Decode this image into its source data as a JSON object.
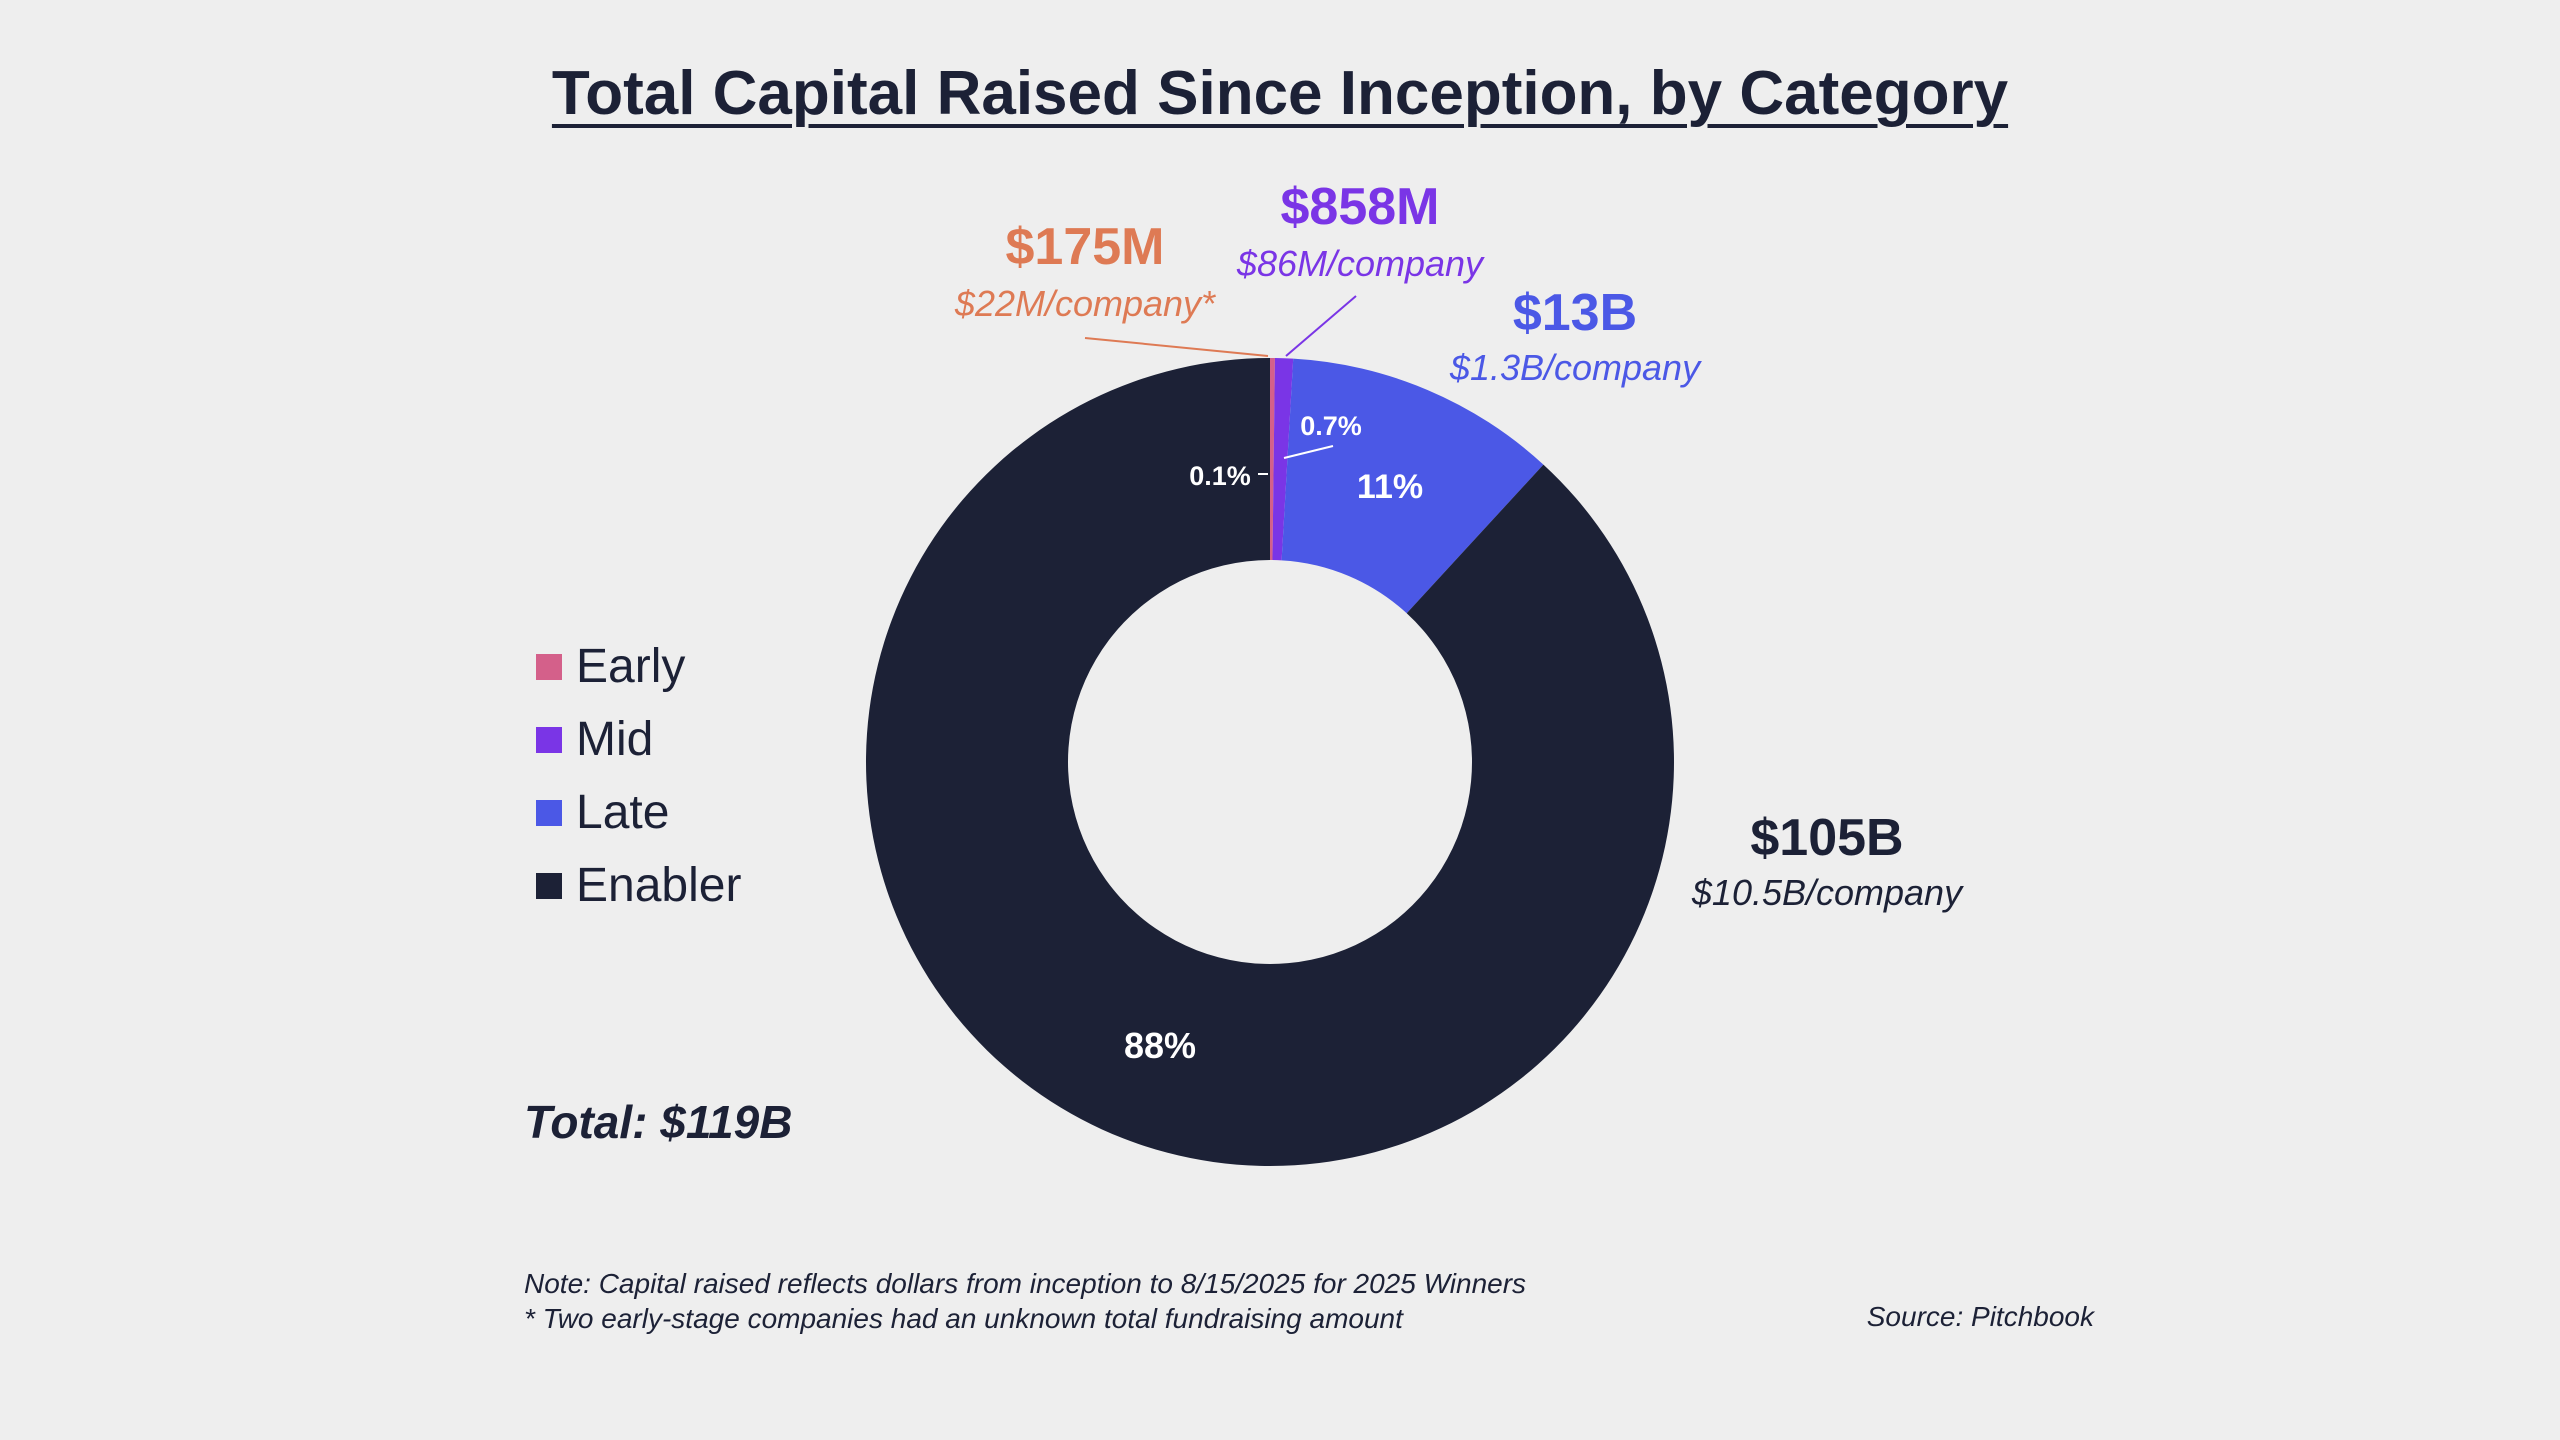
{
  "chart_data": {
    "type": "donut",
    "title": "Total Capital Raised Since Inception, by Category",
    "unit": "USD",
    "slices": [
      {
        "name": "Early",
        "value_usd": 0.175,
        "value_unit": "B",
        "label": "$175M",
        "per_company": "$22M/company*",
        "pct_label": "0.1%",
        "color": "#d4608a",
        "label_color": "#de7a54"
      },
      {
        "name": "Mid",
        "value_usd": 0.858,
        "value_unit": "B",
        "label": "$858M",
        "per_company": "$86M/company",
        "pct_label": "0.7%",
        "color": "#7a35e6",
        "label_color": "#7a35e6"
      },
      {
        "name": "Late",
        "value_usd": 13,
        "value_unit": "B",
        "label": "$13B",
        "per_company": "$1.3B/company",
        "pct_label": "11%",
        "color": "#4b58e6",
        "label_color": "#4b58e6"
      },
      {
        "name": "Enabler",
        "value_usd": 105,
        "value_unit": "B",
        "label": "$105B",
        "per_company": "$10.5B/company",
        "pct_label": "88%",
        "color": "#1c2136",
        "label_color": "#1c2136"
      }
    ],
    "legend": [
      "Early",
      "Mid",
      "Late",
      "Enabler"
    ],
    "legend_position": "left"
  },
  "total": "Total: $119B",
  "note_line1": "Note: Capital raised reflects dollars from inception to 8/15/2025 for 2025 Winners",
  "note_line2": "* Two early-stage companies had an unknown total fundraising amount",
  "source": "Source: Pitchbook"
}
